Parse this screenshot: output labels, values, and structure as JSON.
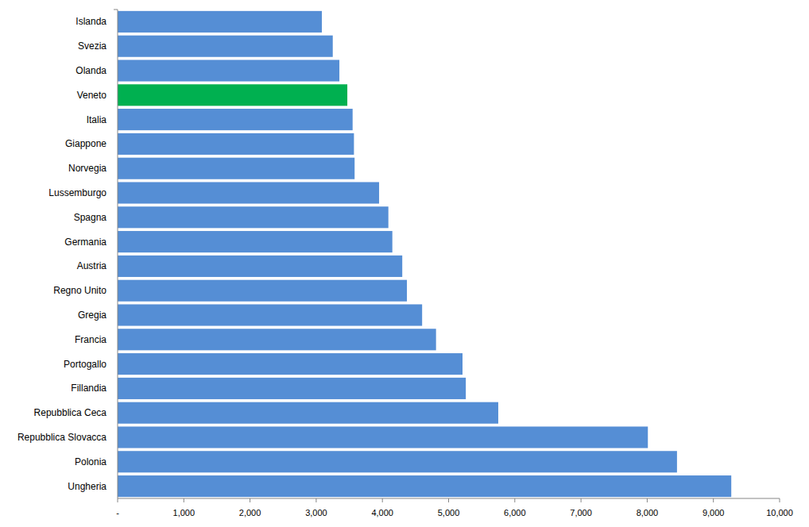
{
  "chart_data": {
    "type": "bar",
    "orientation": "horizontal",
    "categories": [
      "Islanda",
      "Svezia",
      "Olanda",
      "Veneto",
      "Italia",
      "Giappone",
      "Norvegia",
      "Lussemburgo",
      "Spagna",
      "Germania",
      "Austria",
      "Regno Unito",
      "Gregia",
      "Francia",
      "Portogallo",
      "Fillandia",
      "Repubblica Ceca",
      "Repubblica Slovacca",
      "Polonia",
      "Ungheria"
    ],
    "values": [
      3085,
      3250,
      3350,
      3470,
      3550,
      3570,
      3580,
      3950,
      4090,
      4150,
      4300,
      4370,
      4600,
      4810,
      5210,
      5260,
      5750,
      8010,
      8450,
      9270
    ],
    "colors": [
      "#558ed5",
      "#558ed5",
      "#558ed5",
      "#00b050",
      "#558ed5",
      "#558ed5",
      "#558ed5",
      "#558ed5",
      "#558ed5",
      "#558ed5",
      "#558ed5",
      "#558ed5",
      "#558ed5",
      "#558ed5",
      "#558ed5",
      "#558ed5",
      "#558ed5",
      "#558ed5",
      "#558ed5",
      "#558ed5"
    ],
    "xlim": [
      0,
      10000
    ],
    "xticks": [
      {
        "value": 0,
        "label": "-"
      },
      {
        "value": 1000,
        "label": "1,000"
      },
      {
        "value": 2000,
        "label": "2,000"
      },
      {
        "value": 3000,
        "label": "3,000"
      },
      {
        "value": 4000,
        "label": "4,000"
      },
      {
        "value": 5000,
        "label": "5,000"
      },
      {
        "value": 6000,
        "label": "6,000"
      },
      {
        "value": 7000,
        "label": "7,000"
      },
      {
        "value": 8000,
        "label": "8,000"
      },
      {
        "value": 9000,
        "label": "9,000"
      },
      {
        "value": 10000,
        "label": "10,000"
      }
    ],
    "grid": false
  }
}
